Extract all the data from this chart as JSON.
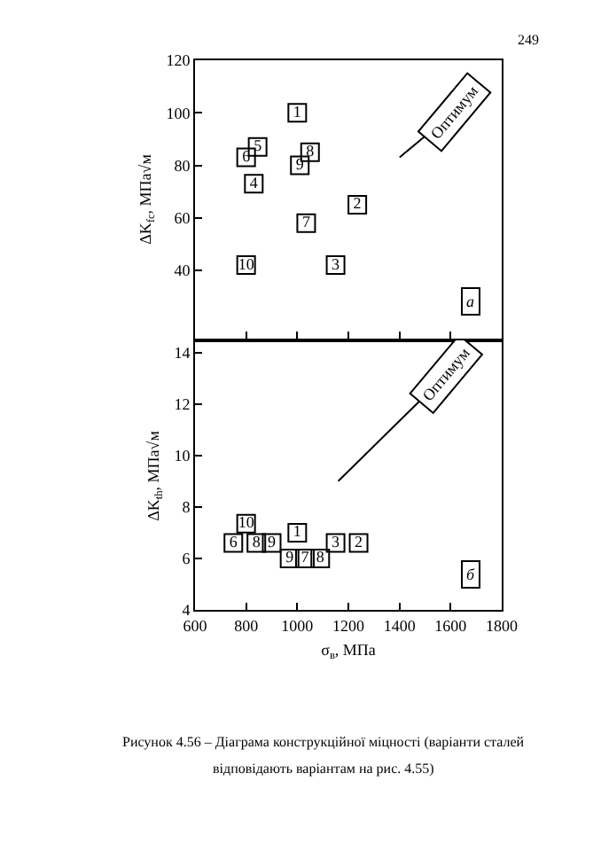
{
  "chart_data": [
    {
      "type": "scatter",
      "ylabel": "ΔK$_{fc}$, МПа√м",
      "xlim": [
        600,
        1800
      ],
      "xticks": [
        600,
        800,
        1000,
        1200,
        1400,
        1600,
        1800
      ],
      "ylim": [
        14,
        120
      ],
      "yticks": [
        40,
        60,
        80,
        100,
        120
      ],
      "tick_labels": "y",
      "marker": "square",
      "grid": false,
      "legend": false,
      "series": [
        {
          "name": "1",
          "color": "#000000",
          "x": [
            1000
          ],
          "values": [
            100
          ]
        },
        {
          "name": "2",
          "color": "#000000",
          "x": [
            1235
          ],
          "values": [
            65
          ]
        },
        {
          "name": "3",
          "color": "#000000",
          "x": [
            1150
          ],
          "values": [
            42
          ]
        },
        {
          "name": "4",
          "color": "#000000",
          "x": [
            830
          ],
          "values": [
            73
          ]
        },
        {
          "name": "5",
          "color": "#000000",
          "x": [
            845
          ],
          "values": [
            87
          ]
        },
        {
          "name": "6",
          "color": "#000000",
          "x": [
            800
          ],
          "values": [
            83
          ]
        },
        {
          "name": "7",
          "color": "#000000",
          "x": [
            1035
          ],
          "values": [
            58
          ]
        },
        {
          "name": "8",
          "color": "#000000",
          "x": [
            1050
          ],
          "values": [
            85
          ]
        },
        {
          "name": "9",
          "color": "#000000",
          "x": [
            1010
          ],
          "values": [
            80
          ]
        },
        {
          "name": "10",
          "color": "#000000",
          "x": [
            800
          ],
          "values": [
            42
          ]
        }
      ],
      "annotations": [
        "Оптимум",
        "а",
        "249"
      ]
    },
    {
      "type": "scatter",
      "xlabel": "σ$_{в}$, МПа",
      "ylabel": "ΔK$_{th}$, МПа√м",
      "xlim": [
        600,
        1800
      ],
      "xticks": [
        600,
        800,
        1000,
        1200,
        1400,
        1600,
        1800
      ],
      "ylim": [
        4,
        14.4
      ],
      "yticks": [
        4,
        6,
        8,
        10,
        12,
        14
      ],
      "marker": "square",
      "grid": false,
      "legend": false,
      "series": [
        {
          "name": "10",
          "color": "#000000",
          "x": [
            800
          ],
          "values": [
            7.35
          ]
        },
        {
          "name": "6",
          "color": "#000000",
          "x": [
            750
          ],
          "values": [
            6.6
          ]
        },
        {
          "name": "8",
          "color": "#000000",
          "x": [
            840
          ],
          "values": [
            6.6
          ]
        },
        {
          "name": "9",
          "color": "#000000",
          "x": [
            900
          ],
          "values": [
            6.6
          ]
        },
        {
          "name": "1",
          "color": "#000000",
          "x": [
            1000
          ],
          "values": [
            7.0
          ]
        },
        {
          "name": "9",
          "color": "#000000",
          "x": [
            970
          ],
          "values": [
            6.0
          ]
        },
        {
          "name": "7",
          "color": "#000000",
          "x": [
            1030
          ],
          "values": [
            6.0
          ]
        },
        {
          "name": "8",
          "color": "#000000",
          "x": [
            1090
          ],
          "values": [
            6.0
          ]
        },
        {
          "name": "3",
          "color": "#000000",
          "x": [
            1150
          ],
          "values": [
            6.6
          ]
        },
        {
          "name": "2",
          "color": "#000000",
          "x": [
            1240
          ],
          "values": [
            6.6
          ]
        }
      ],
      "annotations": [
        "Оптимум",
        "б",
        "Рисунок 4.56 – Діаграма конструкційної міцності (варіанти сталей",
        "відповідають варіантам на рис. 4.55)"
      ]
    }
  ]
}
